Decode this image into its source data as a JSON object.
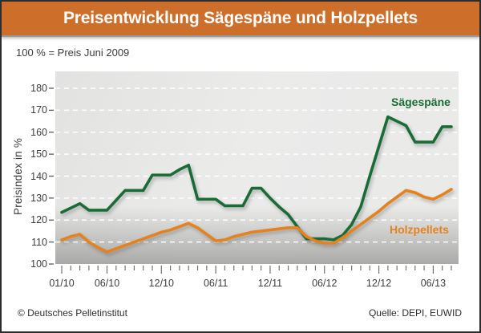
{
  "header": {
    "title": "Preisentwicklung Sägespäne und Holzpellets",
    "bg_color": "#cd6f2a"
  },
  "subtitle": "100 % = Preis Juni 2009",
  "footer": {
    "left": "© Deutsches Pelletinstitut",
    "right": "Quelle: DEPI, EUWID"
  },
  "chart_data": {
    "type": "line",
    "title": "Preisentwicklung Sägespäne und Holzpellets",
    "subtitle": "100 % = Preis Juni 2009",
    "xlabel": "",
    "ylabel": "Preisindex in %",
    "ylim": [
      100,
      187
    ],
    "yticks": [
      100,
      110,
      120,
      130,
      140,
      150,
      160,
      170,
      180
    ],
    "grid": "horizontal white dashed lines on gray panel",
    "legend_position": "inline labels near right end of lines",
    "plot_bg": "#e8e8e7",
    "x": [
      "01/10",
      "02/10",
      "03/10",
      "04/10",
      "05/10",
      "06/10",
      "07/10",
      "08/10",
      "09/10",
      "10/10",
      "11/10",
      "12/10",
      "01/11",
      "02/11",
      "03/11",
      "04/11",
      "05/11",
      "06/11",
      "07/11",
      "08/11",
      "09/11",
      "10/11",
      "11/11",
      "12/11",
      "01/12",
      "02/12",
      "03/12",
      "04/12",
      "05/12",
      "06/12",
      "07/12",
      "08/12",
      "09/12",
      "10/12",
      "11/12",
      "12/12",
      "01/13",
      "02/13",
      "03/13",
      "04/13",
      "05/13",
      "06/13",
      "07/13",
      "08/13"
    ],
    "xtick_labels": [
      {
        "label": "01/10",
        "month_index": 0
      },
      {
        "label": "06/10",
        "month_index": 5
      },
      {
        "label": "12/10",
        "month_index": 11
      },
      {
        "label": "06/11",
        "month_index": 17
      },
      {
        "label": "12/11",
        "month_index": 23
      },
      {
        "label": "06/12",
        "month_index": 29
      },
      {
        "label": "12/12",
        "month_index": 35
      },
      {
        "label": "06/13",
        "month_index": 41
      }
    ],
    "minor_xticks": "monthly",
    "series": [
      {
        "name": "Sägespäne",
        "color": "#1a6c36",
        "values": [
          123.5,
          125.5,
          127.5,
          124.5,
          124.5,
          124.5,
          129,
          133.5,
          133.5,
          133.5,
          140.5,
          140.5,
          140.5,
          143,
          145,
          129.5,
          129.5,
          129.5,
          126.5,
          126.5,
          126.5,
          134.5,
          134.5,
          130,
          126,
          122.5,
          117,
          111.5,
          111.5,
          111.5,
          111,
          113,
          118,
          126,
          140,
          153.5,
          167,
          165,
          163,
          155.5,
          155.5,
          155.5,
          162.5,
          162.5
        ]
      },
      {
        "name": "Holzpellets",
        "color": "#e5821e",
        "values": [
          111,
          112.5,
          113.5,
          110,
          107.5,
          105.5,
          107,
          108.5,
          110,
          111.5,
          113,
          114.5,
          115.5,
          117,
          118.5,
          116.5,
          113.5,
          110.5,
          111,
          112.5,
          113.5,
          114.5,
          115,
          115.5,
          116,
          116.5,
          116.5,
          112.5,
          110.5,
          109.5,
          109.5,
          112,
          115,
          118,
          121,
          124,
          127.5,
          130.5,
          133.5,
          132.5,
          130.5,
          129.5,
          131.5,
          134
        ]
      }
    ]
  },
  "legend": {
    "saegespaene": "Sägespäne",
    "holzpellets": "Holzpellets"
  },
  "colors": {
    "header_orange": "#cd6f2a",
    "line_green": "#1a6c36",
    "line_orange": "#e5821e",
    "frame_border": "#2d2d2d"
  }
}
